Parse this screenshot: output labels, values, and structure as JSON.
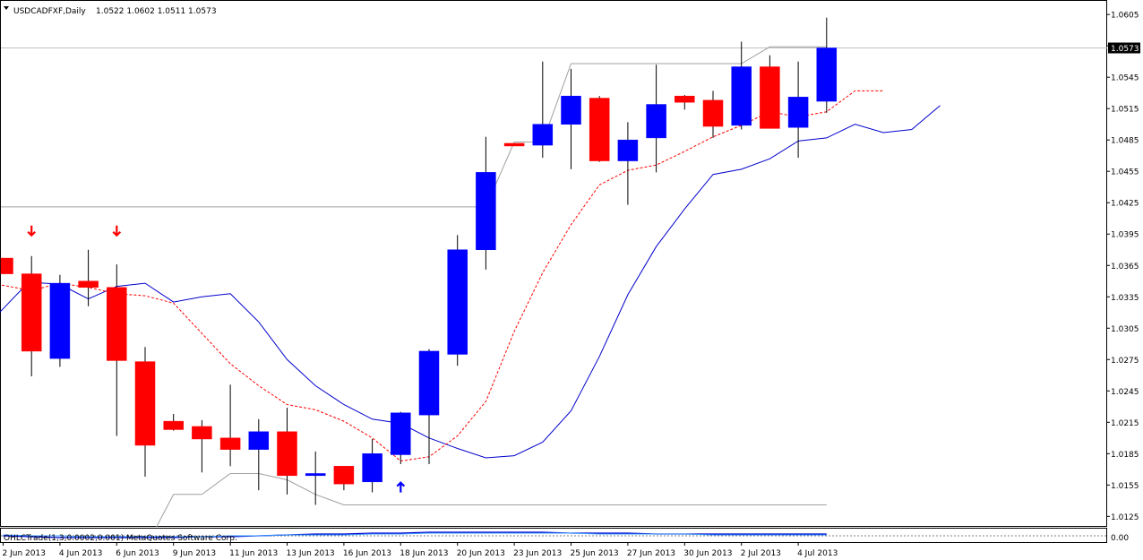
{
  "chart_data": {
    "type": "candlestick",
    "title": "USDCADFXF,Daily",
    "ohlc_header": "1.0522 1.0602 1.0511 1.0573",
    "indicator_text": "OHLCTrade(1,3,0.0002,0.001) MetaQuotes Software Corp.",
    "indicator_scale_label": "0.00",
    "last_price": 1.0573,
    "ylim": [
      1.0115,
      1.0618
    ],
    "y_ticks": [
      "1.0605",
      "1.0575",
      "1.0545",
      "1.0515",
      "1.0485",
      "1.0455",
      "1.0425",
      "1.0395",
      "1.0365",
      "1.0335",
      "1.0305",
      "1.0275",
      "1.0245",
      "1.0215",
      "1.0185",
      "1.0155",
      "1.0125"
    ],
    "x_ticks": [
      {
        "index": 0,
        "label": "2 Jun 2013"
      },
      {
        "index": 2,
        "label": "4 Jun 2013"
      },
      {
        "index": 4,
        "label": "6 Jun 2013"
      },
      {
        "index": 6,
        "label": "9 Jun 2013"
      },
      {
        "index": 8,
        "label": "11 Jun 2013"
      },
      {
        "index": 10,
        "label": "13 Jun 2013"
      },
      {
        "index": 12,
        "label": "16 Jun 2013"
      },
      {
        "index": 14,
        "label": "18 Jun 2013"
      },
      {
        "index": 16,
        "label": "20 Jun 2013"
      },
      {
        "index": 18,
        "label": "23 Jun 2013"
      },
      {
        "index": 20,
        "label": "25 Jun 2013"
      },
      {
        "index": 22,
        "label": "27 Jun 2013"
      },
      {
        "index": 24,
        "label": "30 Jun 2013"
      },
      {
        "index": 26,
        "label": "2 Jul 2013"
      },
      {
        "index": 28,
        "label": "4 Jul 2013"
      }
    ],
    "candles": [
      {
        "o": 1.0372,
        "h": 1.0372,
        "l": 1.0357,
        "c": 1.0357
      },
      {
        "o": 1.0357,
        "h": 1.0374,
        "l": 1.0259,
        "c": 1.0283
      },
      {
        "o": 1.0276,
        "h": 1.0356,
        "l": 1.0268,
        "c": 1.0348
      },
      {
        "o": 1.035,
        "h": 1.038,
        "l": 1.0326,
        "c": 1.0344
      },
      {
        "o": 1.0344,
        "h": 1.0366,
        "l": 1.0202,
        "c": 1.0274
      },
      {
        "o": 1.0273,
        "h": 1.0287,
        "l": 1.0163,
        "c": 1.0193
      },
      {
        "o": 1.0216,
        "h": 1.0223,
        "l": 1.0207,
        "c": 1.0208
      },
      {
        "o": 1.0211,
        "h": 1.0217,
        "l": 1.0167,
        "c": 1.0199
      },
      {
        "o": 1.02,
        "h": 1.0251,
        "l": 1.0173,
        "c": 1.0189
      },
      {
        "o": 1.0189,
        "h": 1.0218,
        "l": 1.015,
        "c": 1.0206
      },
      {
        "o": 1.0206,
        "h": 1.0229,
        "l": 1.0146,
        "c": 1.0164
      },
      {
        "o": 1.0164,
        "h": 1.0187,
        "l": 1.0136,
        "c": 1.0166
      },
      {
        "o": 1.0173,
        "h": 1.0173,
        "l": 1.015,
        "c": 1.0156
      },
      {
        "o": 1.0158,
        "h": 1.0199,
        "l": 1.0148,
        "c": 1.0185
      },
      {
        "o": 1.0184,
        "h": 1.0225,
        "l": 1.0175,
        "c": 1.0224
      },
      {
        "o": 1.0222,
        "h": 1.0285,
        "l": 1.0175,
        "c": 1.0283
      },
      {
        "o": 1.028,
        "h": 1.0394,
        "l": 1.0269,
        "c": 1.038
      },
      {
        "o": 1.038,
        "h": 1.0488,
        "l": 1.0361,
        "c": 1.0454
      },
      {
        "o": 1.0481,
        "h": 1.0482,
        "l": 1.0481,
        "c": 1.048
      },
      {
        "o": 1.048,
        "h": 1.056,
        "l": 1.0468,
        "c": 1.05
      },
      {
        "o": 1.05,
        "h": 1.0553,
        "l": 1.0457,
        "c": 1.0527
      },
      {
        "o": 1.0525,
        "h": 1.0527,
        "l": 1.0464,
        "c": 1.0465
      },
      {
        "o": 1.0465,
        "h": 1.0502,
        "l": 1.0423,
        "c": 1.0485
      },
      {
        "o": 1.0487,
        "h": 1.0557,
        "l": 1.0454,
        "c": 1.0519
      },
      {
        "o": 1.0527,
        "h": 1.0528,
        "l": 1.0514,
        "c": 1.0521
      },
      {
        "o": 1.0523,
        "h": 1.0532,
        "l": 1.0487,
        "c": 1.0498
      },
      {
        "o": 1.0499,
        "h": 1.0579,
        "l": 1.0495,
        "c": 1.0555
      },
      {
        "o": 1.0555,
        "h": 1.0566,
        "l": 1.0496,
        "c": 1.0496
      },
      {
        "o": 1.0497,
        "h": 1.056,
        "l": 1.0468,
        "c": 1.0526
      },
      {
        "o": 1.0522,
        "h": 1.0602,
        "l": 1.0511,
        "c": 1.0573
      }
    ],
    "blue_line": {
      "name": "",
      "color": "#0000cc",
      "x": [
        -0.2,
        0.9,
        2.0,
        3.0,
        4.0,
        5.0,
        6.0,
        7.0,
        8.0,
        9.0,
        10.0,
        11.0,
        12.0,
        13.0,
        14.0,
        15.0,
        16.0,
        17.0,
        18.0,
        19.0,
        20.0,
        21.0,
        22.0,
        23.0,
        24.0,
        25.0,
        26.0,
        27.0,
        28.0,
        29.0,
        30.0,
        31.0,
        32.0,
        33.0
      ],
      "y": [
        1.0318,
        1.0349,
        1.0347,
        1.0333,
        1.0345,
        1.0348,
        1.033,
        1.0335,
        1.0338,
        1.0311,
        1.0275,
        1.025,
        1.0232,
        1.0218,
        1.0214,
        1.02,
        1.019,
        1.0181,
        1.0183,
        1.0196,
        1.0226,
        1.0278,
        1.0337,
        1.0383,
        1.0419,
        1.0452,
        1.0457,
        1.0467,
        1.0484,
        1.0487,
        1.05,
        1.0492,
        1.0495,
        1.0518
      ]
    },
    "red_line": {
      "name": "",
      "color": "#ff0000",
      "x": [
        -0.2,
        1.0,
        2.0,
        3.0,
        4.0,
        5.0,
        6.0,
        7.0,
        8.0,
        9.0,
        10.0,
        11.0,
        12.0,
        13.0,
        14.0,
        15.0,
        16.0,
        17.0,
        18.0,
        19.0,
        20.0,
        21.0,
        22.0,
        23.0,
        24.0,
        25.0,
        26.0,
        27.0,
        28.0,
        29.0,
        30.0,
        31.0
      ],
      "y": [
        1.0347,
        1.0341,
        1.0348,
        1.0344,
        1.0338,
        1.0336,
        1.0329,
        1.03,
        1.0271,
        1.025,
        1.0232,
        1.0227,
        1.0216,
        1.02,
        1.0178,
        1.0182,
        1.0202,
        1.0235,
        1.0302,
        1.0358,
        1.0404,
        1.0442,
        1.0456,
        1.0461,
        1.0474,
        1.0488,
        1.0499,
        1.0512,
        1.0507,
        1.0512,
        1.0532,
        1.0532
      ]
    },
    "gray_line": {
      "name": "",
      "color": "#a0a0a0",
      "x": [
        5.4,
        6.0,
        7.0,
        8.0,
        9.0,
        10.0,
        11.0,
        12.0,
        29.0
      ],
      "y": [
        1.0115,
        1.0146,
        1.0146,
        1.0166,
        1.0166,
        1.016,
        1.0146,
        1.0136,
        1.0136
      ]
    },
    "gray_line_upper": {
      "name": "",
      "color": "#a0a0a0",
      "x": [
        17.0,
        18.0,
        19.0,
        20.0,
        26.0,
        27.0,
        29.0
      ],
      "y": [
        1.0421,
        1.0483,
        1.0483,
        1.0558,
        1.0558,
        1.0574,
        1.0574
      ]
    },
    "gray_level_left": {
      "color": "#a0a0a0",
      "x_end": 17.0,
      "y": 1.0421
    },
    "arrows": [
      {
        "type": "down",
        "color": "#ff0000",
        "index": 1,
        "y": 1.0398
      },
      {
        "type": "down",
        "color": "#ff0000",
        "index": 4,
        "y": 1.0398
      },
      {
        "type": "up",
        "color": "#0000ff",
        "index": 14,
        "y": 1.0153
      }
    ],
    "colors": {
      "bull": "#0000ff",
      "bear": "#ff0000",
      "grid": "#c0c0c0",
      "axis": "#000000",
      "last_price_bg": "#000000",
      "last_price_fg": "#ffffff"
    }
  }
}
